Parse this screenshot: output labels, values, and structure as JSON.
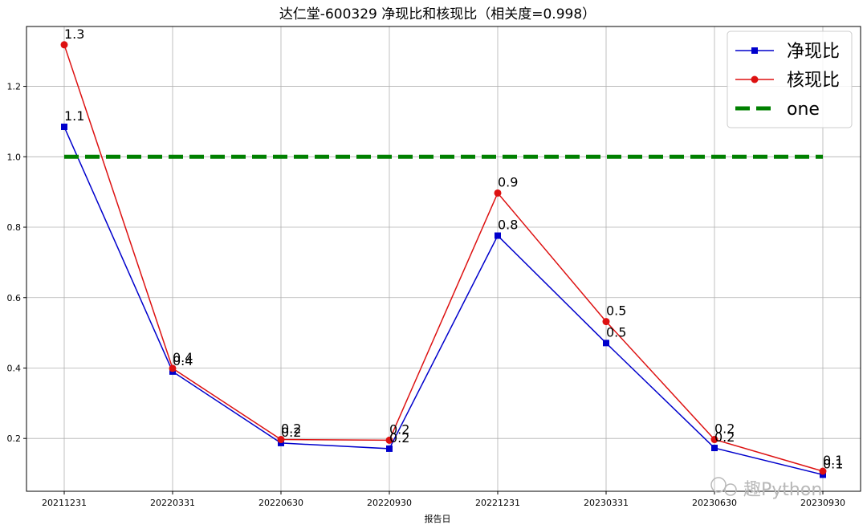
{
  "chart_data": {
    "type": "line",
    "title": "达仁堂-600329 净现比和核现比（相关度=0.998）",
    "xlabel": "报告日",
    "ylabel": "",
    "categories": [
      "20211231",
      "20220331",
      "20220630",
      "20220930",
      "20221231",
      "20230331",
      "20230630",
      "20230930"
    ],
    "ylim": [
      0.05,
      1.37
    ],
    "yticks": [
      0.2,
      0.4,
      0.6,
      0.8,
      1.0,
      1.2
    ],
    "ytick_labels": [
      "0.2",
      "0.4",
      "0.6",
      "0.8",
      "1.0",
      "1.2"
    ],
    "grid": true,
    "legend_position": "top-right",
    "series": [
      {
        "name": "净现比",
        "marker": "square",
        "color": "#0000cc",
        "values": [
          1.085,
          0.39,
          0.187,
          0.171,
          0.776,
          0.471,
          0.173,
          0.097
        ],
        "labels": [
          "1.1",
          "0.4",
          "0.2",
          "0.2",
          "0.8",
          "0.5",
          "0.2",
          "0.1"
        ]
      },
      {
        "name": "核现比",
        "marker": "circle",
        "color": "#dd1111",
        "values": [
          1.318,
          0.399,
          0.197,
          0.195,
          0.897,
          0.532,
          0.197,
          0.107
        ],
        "labels": [
          "1.3",
          "0.4",
          "0.2",
          "0.2",
          "0.9",
          "0.5",
          "0.2",
          "0.1"
        ]
      },
      {
        "name": "one",
        "marker": "none",
        "color": "#008000",
        "dashed": true,
        "values": [
          1.0,
          1.0,
          1.0,
          1.0,
          1.0,
          1.0,
          1.0,
          1.0
        ],
        "labels": []
      }
    ]
  },
  "watermark": "趣Python"
}
